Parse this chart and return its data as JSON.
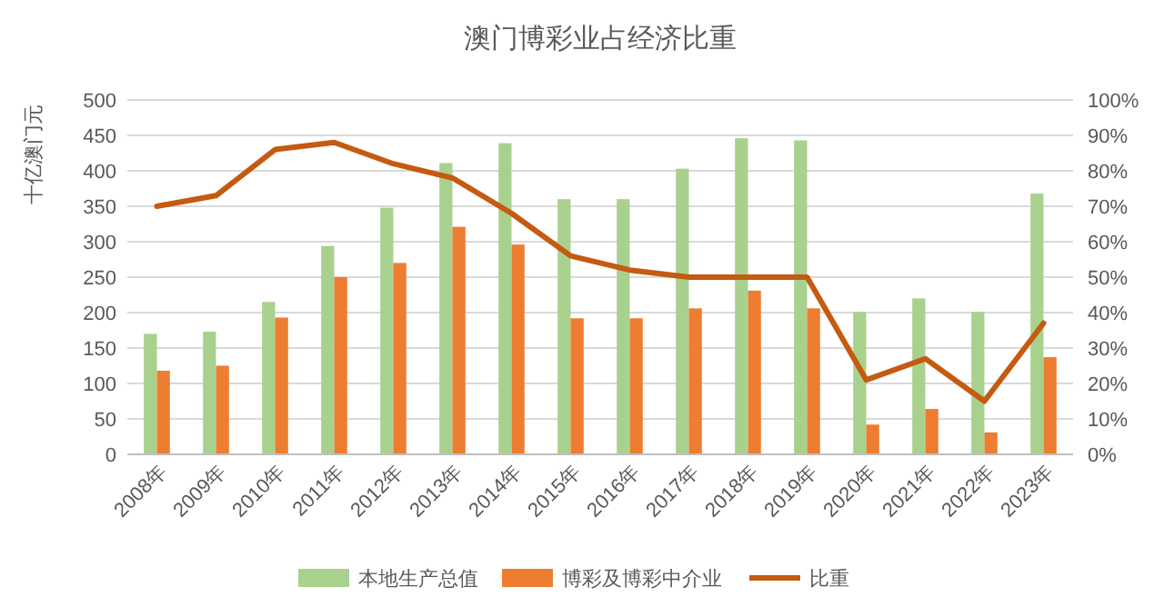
{
  "chart_data": {
    "type": "bar",
    "title": "澳门博彩业占经济比重",
    "ylabel": "十亿澳门元",
    "categories": [
      "2008年",
      "2009年",
      "2010年",
      "2011年",
      "2012年",
      "2013年",
      "2014年",
      "2015年",
      "2016年",
      "2017年",
      "2018年",
      "2019年",
      "2020年",
      "2021年",
      "2022年",
      "2023年"
    ],
    "series": [
      {
        "name": "本地生产总值",
        "color": "#a9d18e",
        "values": [
          170,
          173,
          215,
          294,
          348,
          411,
          439,
          360,
          360,
          403,
          446,
          443,
          201,
          220,
          201,
          368
        ]
      },
      {
        "name": "博彩及博彩中介业",
        "color": "#ed7d31",
        "values": [
          118,
          125,
          193,
          250,
          270,
          321,
          296,
          192,
          192,
          206,
          231,
          206,
          42,
          64,
          31,
          137
        ]
      },
      {
        "name": "比重",
        "type": "line",
        "axis": "y2",
        "color": "#c55a11",
        "values": [
          70,
          73,
          86,
          88,
          82,
          78,
          68,
          56,
          52,
          50,
          50,
          50,
          21,
          27,
          15,
          37
        ]
      }
    ],
    "ylim": [
      0,
      500
    ],
    "yticks": [
      0,
      50,
      100,
      150,
      200,
      250,
      300,
      350,
      400,
      450,
      500
    ],
    "y2lim": [
      0,
      100
    ],
    "y2ticks": [
      {
        "value": 0,
        "label": "0%"
      },
      {
        "value": 10,
        "label": "10%"
      },
      {
        "value": 20,
        "label": "20%"
      },
      {
        "value": 30,
        "label": "30%"
      },
      {
        "value": 40,
        "label": "40%"
      },
      {
        "value": 50,
        "label": "50%"
      },
      {
        "value": 60,
        "label": "60%"
      },
      {
        "value": 70,
        "label": "70%"
      },
      {
        "value": 80,
        "label": "80%"
      },
      {
        "value": 90,
        "label": "90%"
      },
      {
        "value": 100,
        "label": "100%"
      }
    ],
    "grid": "y",
    "legend": "bottom"
  }
}
